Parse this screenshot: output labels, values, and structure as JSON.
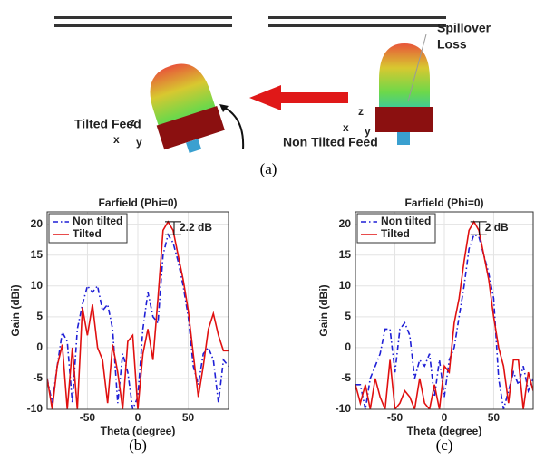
{
  "diagram": {
    "spillover": [
      "Spillover",
      "Loss"
    ],
    "tilted_feed": "Tilted Feed",
    "non_tilted_feed": "Non Tilted Feed",
    "left_axes": {
      "z": "z",
      "x": "x",
      "y": "y"
    },
    "right_axes": {
      "z": "z",
      "x": "x",
      "y": "y"
    }
  },
  "captions": [
    "(a)",
    "(b)",
    "(c)"
  ],
  "chart_data": [
    {
      "type": "line",
      "title": "Farfield (Phi=0)",
      "x_label": "Theta (degree)",
      "y_label": "Gain (dBi)",
      "x": [
        -90,
        -85,
        -80,
        -75,
        -70,
        -65,
        -60,
        -55,
        -50,
        -45,
        -40,
        -35,
        -30,
        -25,
        -20,
        -15,
        -10,
        -5,
        0,
        5,
        10,
        15,
        20,
        25,
        30,
        35,
        40,
        45,
        50,
        55,
        60,
        65,
        70,
        75,
        80,
        85,
        90
      ],
      "xlim": [
        -90,
        90
      ],
      "xticks": [
        -50,
        0,
        50
      ],
      "ylim": [
        -10,
        22
      ],
      "yticks": [
        -10,
        -5,
        0,
        5,
        10,
        15,
        20
      ],
      "grid": true,
      "legend": "upper left",
      "series": [
        {
          "name": "Non tilted",
          "color": "#1f1fd6",
          "linestyle": "dashdot",
          "values": [
            -5,
            -9,
            -3,
            2.5,
            1,
            -9,
            3,
            7,
            10,
            9,
            10,
            6,
            7,
            3,
            -9,
            -1,
            -4,
            -10,
            -8,
            3,
            9,
            5,
            4,
            15,
            18.3,
            17,
            14,
            10,
            5,
            -3,
            -6,
            -1,
            0,
            -2,
            -9,
            -2,
            -3
          ]
        },
        {
          "name": "Tilted",
          "color": "#e01010",
          "linestyle": "solid",
          "values": [
            -5,
            -10,
            -3,
            0.5,
            -10,
            0,
            -10,
            6.5,
            2,
            7,
            0,
            -2,
            -9,
            0.5,
            -4,
            -10,
            1,
            2,
            -10,
            -1,
            3,
            -2,
            8,
            19,
            20.4,
            19,
            15,
            11,
            6,
            -1,
            -8,
            -3,
            3,
            5.5,
            2,
            -0.5,
            -0.5
          ]
        }
      ],
      "annotation": "2.2 dB"
    },
    {
      "type": "line",
      "title": "Farfield (Phi=0)",
      "x_label": "Theta (degree)",
      "y_label": "Gain (dBi)",
      "x": [
        -90,
        -85,
        -80,
        -75,
        -70,
        -65,
        -60,
        -55,
        -50,
        -45,
        -40,
        -35,
        -30,
        -25,
        -20,
        -15,
        -10,
        -5,
        0,
        5,
        10,
        15,
        20,
        25,
        30,
        35,
        40,
        45,
        50,
        55,
        60,
        65,
        70,
        75,
        80,
        85,
        90
      ],
      "xlim": [
        -90,
        90
      ],
      "xticks": [
        -50,
        0,
        50
      ],
      "ylim": [
        -10,
        22
      ],
      "yticks": [
        -10,
        -5,
        0,
        5,
        10,
        15,
        20
      ],
      "grid": true,
      "legend": "upper left",
      "series": [
        {
          "name": "Non tilted",
          "color": "#1f1fd6",
          "linestyle": "dashdot",
          "values": [
            -6,
            -6,
            -10,
            -5,
            -3,
            -1,
            3,
            3,
            -4,
            3,
            4,
            2,
            -5,
            -2,
            -3,
            -1,
            -8,
            -2,
            -8,
            -2,
            0,
            5,
            10,
            16,
            18.3,
            18,
            15,
            12,
            8,
            -5,
            -10,
            -7,
            -4,
            -6,
            -3,
            -7,
            -5
          ]
        },
        {
          "name": "Tilted",
          "color": "#e01010",
          "linestyle": "solid",
          "values": [
            -6,
            -9,
            -6,
            -10,
            -5,
            -8,
            -10,
            -2,
            -10,
            -9,
            -7,
            -8,
            -10,
            -5,
            -9,
            -10,
            -6,
            -10,
            -3,
            -4,
            4,
            8,
            14,
            19,
            20.4,
            19,
            15,
            11,
            5,
            0,
            -3,
            -9,
            -2,
            -2,
            -10,
            -4,
            -7
          ]
        }
      ],
      "annotation": "2 dB"
    }
  ]
}
